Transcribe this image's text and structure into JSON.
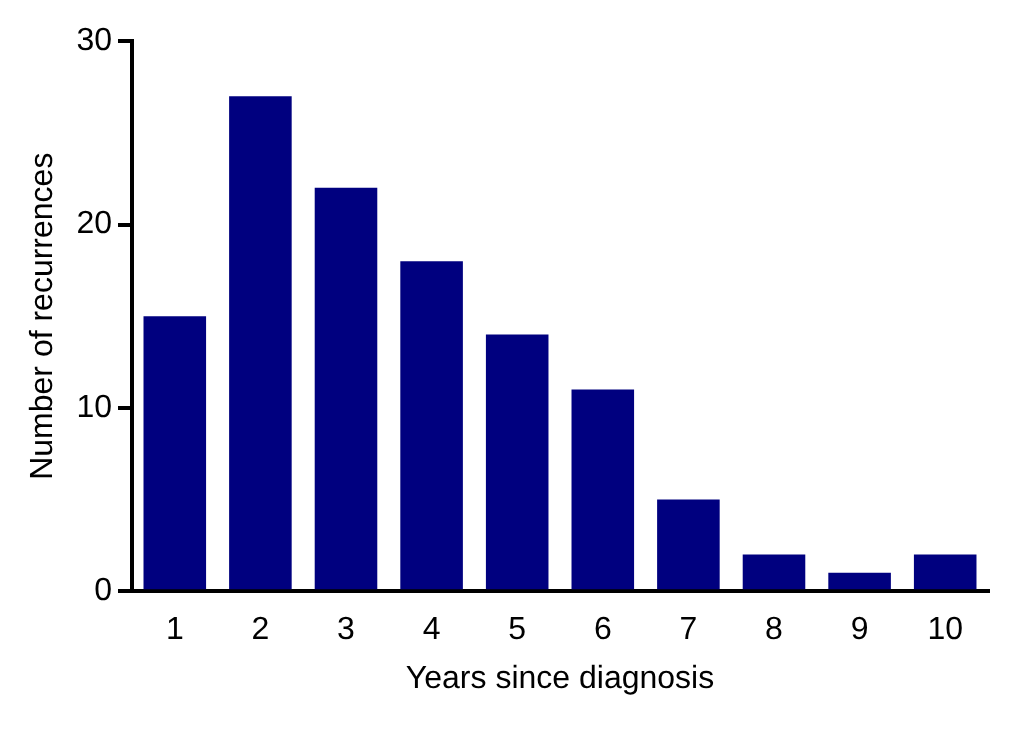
{
  "chart_data": {
    "type": "bar",
    "xlabel": "Years since diagnosis",
    "ylabel": "Number of recurrences",
    "categories": [
      "1",
      "2",
      "3",
      "4",
      "5",
      "6",
      "7",
      "8",
      "9",
      "10"
    ],
    "values": [
      15,
      27,
      22,
      18,
      14,
      11,
      5,
      2,
      1,
      2
    ],
    "color": "#00007f",
    "ylim": [
      0,
      30
    ],
    "yticks": [
      0,
      10,
      20,
      30
    ],
    "grid": false,
    "legend": false
  }
}
